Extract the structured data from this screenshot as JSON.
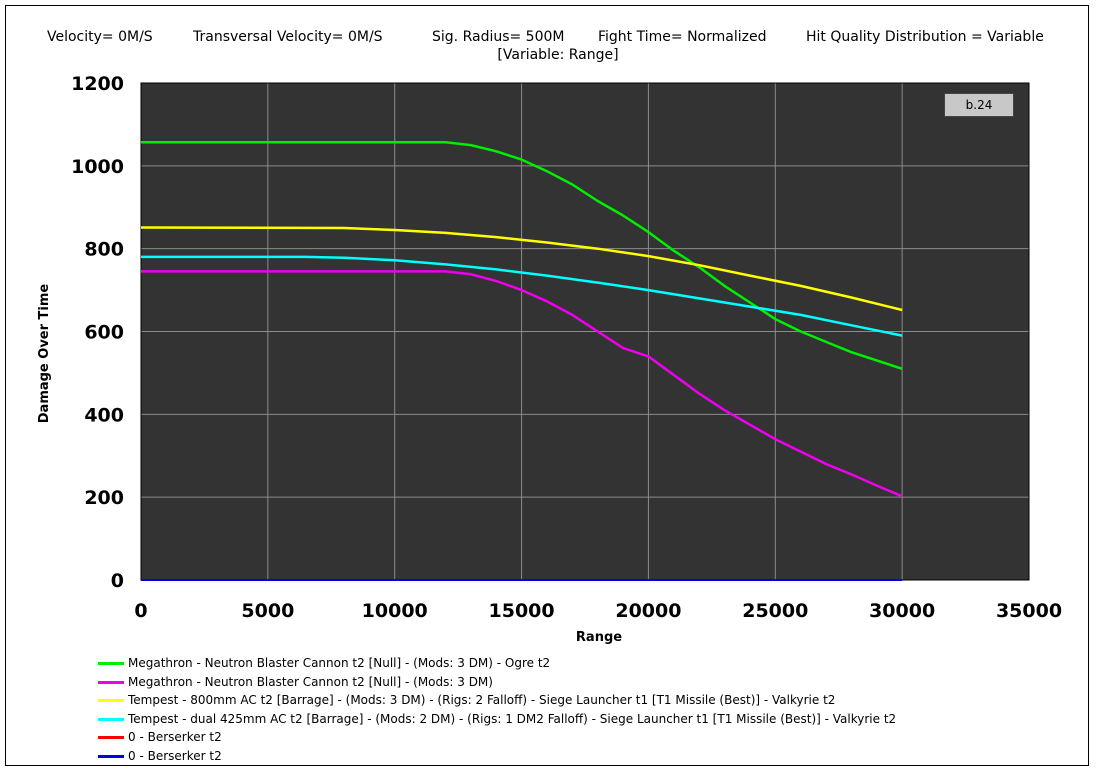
{
  "header": {
    "velocity": "Velocity= 0M/S",
    "transversal": "Transversal Velocity= 0M/S",
    "sig_radius": "Sig. Radius= 500M",
    "fight_time": "Fight Time= Normalized",
    "hit_quality": "Hit Quality Distribution = Variable",
    "subtitle": "[Variable: Range]"
  },
  "version_badge": "b.24",
  "colors": {
    "plot_background": "#333333",
    "grid": "#8c8c8c",
    "green": "#00ee00",
    "magenta": "#ee00ee",
    "yellow": "#ffff00",
    "cyan": "#00ffff",
    "red": "#ff0000",
    "blue": "#0000ee"
  },
  "chart_data": {
    "type": "line",
    "xlabel": "Range",
    "ylabel": "Damage Over Time",
    "xlim": [
      0,
      35000
    ],
    "ylim": [
      0,
      1200
    ],
    "x_ticks": [
      "0",
      "5000",
      "10000",
      "15000",
      "20000",
      "25000",
      "30000",
      "35000"
    ],
    "y_ticks": [
      "0",
      "200",
      "400",
      "600",
      "800",
      "1000",
      "1200"
    ],
    "grid": true,
    "legend_position": "bottom",
    "series": [
      {
        "name": "Megathron - Neutron Blaster Cannon t2 [Null] - (Mods: 3 DM) - Ogre t2",
        "color": "#00ee00",
        "points": [
          [
            0,
            1057
          ],
          [
            12000,
            1057
          ],
          [
            13000,
            1050
          ],
          [
            14000,
            1035
          ],
          [
            15000,
            1015
          ],
          [
            16000,
            987
          ],
          [
            17000,
            955
          ],
          [
            18000,
            915
          ],
          [
            19000,
            880
          ],
          [
            20000,
            840
          ],
          [
            21000,
            795
          ],
          [
            22000,
            755
          ],
          [
            23000,
            710
          ],
          [
            24000,
            670
          ],
          [
            25000,
            630
          ],
          [
            26000,
            600
          ],
          [
            27000,
            575
          ],
          [
            28000,
            550
          ],
          [
            29000,
            530
          ],
          [
            30000,
            510
          ]
        ]
      },
      {
        "name": "Megathron - Neutron Blaster Cannon t2 [Null] - (Mods: 3 DM)",
        "color": "#ee00ee",
        "points": [
          [
            0,
            745
          ],
          [
            12000,
            745
          ],
          [
            13000,
            738
          ],
          [
            14000,
            722
          ],
          [
            15000,
            700
          ],
          [
            16000,
            673
          ],
          [
            17000,
            640
          ],
          [
            18000,
            600
          ],
          [
            19000,
            560
          ],
          [
            20000,
            540
          ],
          [
            21000,
            495
          ],
          [
            22000,
            450
          ],
          [
            23000,
            410
          ],
          [
            24000,
            375
          ],
          [
            25000,
            340
          ],
          [
            26000,
            310
          ],
          [
            27000,
            280
          ],
          [
            28000,
            255
          ],
          [
            29000,
            228
          ],
          [
            30000,
            202
          ]
        ]
      },
      {
        "name": "Tempest - 800mm AC t2 [Barrage] - (Mods: 3 DM) - (Rigs: 2 Falloff) - Siege Launcher t1 [T1 Missile (Best)] - Valkyrie t2",
        "color": "#ffff00",
        "points": [
          [
            0,
            851
          ],
          [
            8000,
            850
          ],
          [
            10000,
            845
          ],
          [
            12000,
            838
          ],
          [
            14000,
            828
          ],
          [
            16000,
            815
          ],
          [
            18000,
            800
          ],
          [
            20000,
            782
          ],
          [
            22000,
            760
          ],
          [
            24000,
            735
          ],
          [
            26000,
            710
          ],
          [
            28000,
            682
          ],
          [
            30000,
            652
          ]
        ]
      },
      {
        "name": "Tempest - dual 425mm AC t2 [Barrage] - (Mods: 2 DM) - (Rigs: 1 DM2 Falloff) - Siege Launcher t1 [T1 Missile (Best)] - Valkyrie t2",
        "color": "#00ffff",
        "points": [
          [
            0,
            780
          ],
          [
            6500,
            780
          ],
          [
            8000,
            778
          ],
          [
            10000,
            772
          ],
          [
            12000,
            762
          ],
          [
            14000,
            750
          ],
          [
            16000,
            735
          ],
          [
            18000,
            718
          ],
          [
            20000,
            700
          ],
          [
            22000,
            680
          ],
          [
            24000,
            660
          ],
          [
            26000,
            640
          ],
          [
            28000,
            615
          ],
          [
            30000,
            590
          ]
        ]
      },
      {
        "name": "0 - Berserker t2",
        "color": "#ff0000",
        "points": [
          [
            0,
            0
          ],
          [
            30000,
            0
          ]
        ]
      },
      {
        "name": "0 - Berserker t2",
        "color": "#0000ee",
        "points": [
          [
            0,
            0
          ],
          [
            30000,
            0
          ]
        ]
      }
    ]
  }
}
